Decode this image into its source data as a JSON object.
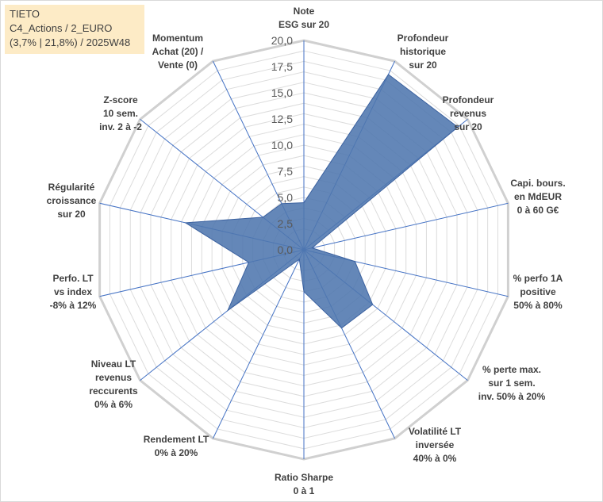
{
  "title_box": {
    "line1": "TIETO",
    "line2": "C4_Actions / 2_EURO",
    "line3": "(3,7% | 21,8%) / 2025W48"
  },
  "chart_data": {
    "type": "radar",
    "rlim": [
      0,
      20
    ],
    "ticks": [
      "0,0",
      "2,5",
      "5,0",
      "7,5",
      "10,0",
      "12,5",
      "15,0",
      "17,5",
      "20,0"
    ],
    "grid": true,
    "legend": "none",
    "series_color": "#4f76ae",
    "categories": [
      "Note\nESG sur 20",
      "Profondeur\nhistorique\nsur 20",
      "Profondeur\nrevenus\nsur 20",
      "Capi. bours.\nen MdEUR\n0 à 60 G€",
      "% perfo 1A\npositive\n50% à 80%",
      "% perte max.\nsur 1 sem.\ninv. 50% à 20%",
      "Volatilité LT\ninversée\n40% à 0%",
      "Ratio Sharpe\n0 à 1",
      "Rendement LT\n0% à 20%",
      "Niveau LT\nrevenus\nreccurents\n0% à 6%",
      "Perfo. LT\nvs index\n-8% à 12%",
      "Régularité\ncroissance\nsur 20",
      "Z-score\n10 sem.\ninv. 2 à -2",
      "Momentum\nAchat (20) /\nVente (0)"
    ],
    "values": [
      4.5,
      18.6,
      18.8,
      0.8,
      5.0,
      8.4,
      8.3,
      4.0,
      1.0,
      9.3,
      5.4,
      11.6,
      5.0,
      4.9
    ]
  }
}
